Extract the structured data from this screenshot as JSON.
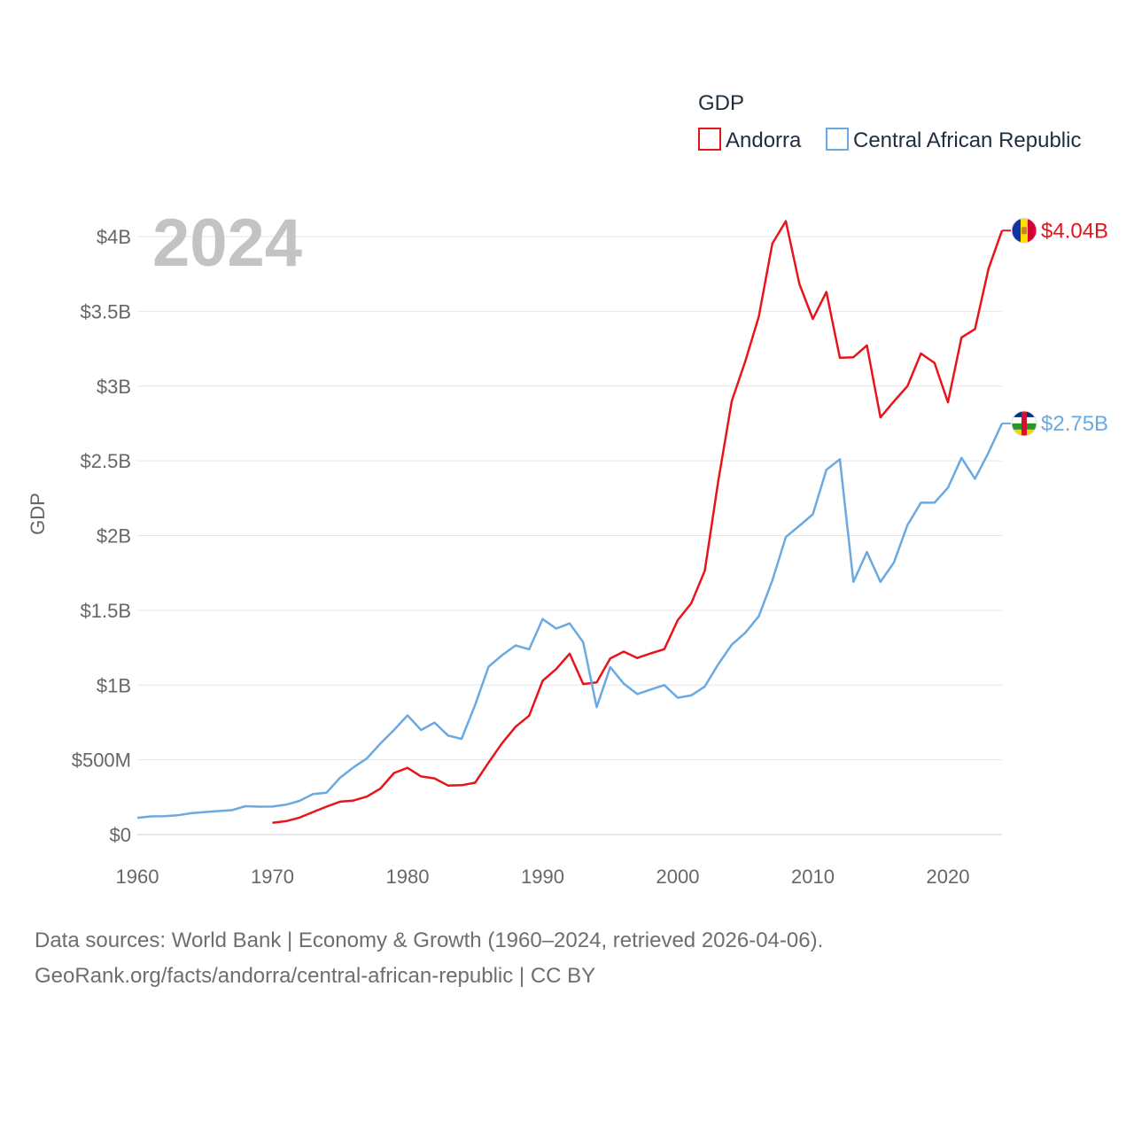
{
  "chart_data": {
    "type": "line",
    "legend_title": "GDP",
    "ylabel": "GDP",
    "xlabel": "",
    "year_label": "2024",
    "xlim": [
      1960,
      2024
    ],
    "ylim": [
      0,
      4000000000
    ],
    "y_ticks": [
      {
        "value": 0,
        "label": "$0"
      },
      {
        "value": 500000000,
        "label": "$500M"
      },
      {
        "value": 1000000000,
        "label": "$1B"
      },
      {
        "value": 1500000000,
        "label": "$1.5B"
      },
      {
        "value": 2000000000,
        "label": "$2B"
      },
      {
        "value": 2500000000,
        "label": "$2.5B"
      },
      {
        "value": 3000000000,
        "label": "$3B"
      },
      {
        "value": 3500000000,
        "label": "$3.5B"
      },
      {
        "value": 4000000000,
        "label": "$4B"
      }
    ],
    "x_ticks": [
      {
        "value": 1960,
        "label": "1960"
      },
      {
        "value": 1970,
        "label": "1970"
      },
      {
        "value": 1980,
        "label": "1980"
      },
      {
        "value": 1990,
        "label": "1990"
      },
      {
        "value": 2000,
        "label": "2000"
      },
      {
        "value": 2010,
        "label": "2010"
      },
      {
        "value": 2020,
        "label": "2020"
      }
    ],
    "series": [
      {
        "name": "Andorra",
        "color": "#e8141b",
        "end_label": "$4.04B",
        "flag": "andorra-flag-icon",
        "x": [
          1970,
          1971,
          1972,
          1973,
          1974,
          1975,
          1976,
          1977,
          1978,
          1979,
          1980,
          1981,
          1982,
          1983,
          1984,
          1985,
          1986,
          1987,
          1988,
          1989,
          1990,
          1991,
          1992,
          1993,
          1994,
          1995,
          1996,
          1997,
          1998,
          1999,
          2000,
          2001,
          2002,
          2003,
          2004,
          2005,
          2006,
          2007,
          2008,
          2009,
          2010,
          2011,
          2012,
          2013,
          2014,
          2015,
          2016,
          2017,
          2018,
          2019,
          2020,
          2021,
          2022,
          2023,
          2024
        ],
        "values": [
          78600000,
          89400000,
          113400000,
          150800000,
          186600000,
          220100000,
          227300000,
          254000000,
          308000000,
          411600000,
          446400000,
          388800000,
          375900000,
          327900000,
          330100000,
          346700000,
          482000000,
          611300000,
          721400000,
          795400000,
          1029000000,
          1107000000,
          1210000000,
          1007000000,
          1018000000,
          1178000000,
          1224000000,
          1181000000,
          1212000000,
          1240000000,
          1434000000,
          1547000000,
          1764000000,
          2367000000,
          2900000000,
          3167000000,
          3465000000,
          3953000000,
          4103000000,
          3683000000,
          3449000000,
          3629000000,
          3189000000,
          3193000000,
          3272000000,
          2790000000,
          2897000000,
          3000000000,
          3218000000,
          3155000000,
          2891000000,
          3325000000,
          3381000000,
          3785000000,
          4040000000
        ]
      },
      {
        "name": "Central African Republic",
        "color": "#6ba9e2",
        "end_label": "$2.75B",
        "flag": "central-african-republic-flag-icon",
        "x": [
          1960,
          1961,
          1962,
          1963,
          1964,
          1965,
          1966,
          1967,
          1968,
          1969,
          1970,
          1971,
          1972,
          1973,
          1974,
          1975,
          1976,
          1977,
          1978,
          1979,
          1980,
          1981,
          1982,
          1983,
          1984,
          1985,
          1986,
          1987,
          1988,
          1989,
          1990,
          1991,
          1992,
          1993,
          1994,
          1995,
          1996,
          1997,
          1998,
          1999,
          2000,
          2001,
          2002,
          2003,
          2004,
          2005,
          2006,
          2007,
          2008,
          2009,
          2010,
          2011,
          2012,
          2013,
          2014,
          2015,
          2016,
          2017,
          2018,
          2019,
          2020,
          2021,
          2022,
          2023,
          2024
        ],
        "values": [
          112200000,
          121700000,
          122900000,
          129300000,
          142600000,
          150600000,
          157300000,
          163300000,
          189500000,
          186400000,
          187000000,
          200000000,
          225000000,
          271000000,
          280000000,
          380000000,
          450000000,
          510000000,
          610000000,
          700000000,
          797000000,
          699000000,
          749000000,
          662000000,
          640000000,
          867000000,
          1123000000,
          1200000000,
          1265000000,
          1239000000,
          1441000000,
          1378000000,
          1412000000,
          1286000000,
          852000000,
          1120000000,
          1010000000,
          940000000,
          970000000,
          1000000000,
          915000000,
          931000000,
          990000000,
          1140000000,
          1270000000,
          1350000000,
          1460000000,
          1700000000,
          1990000000,
          2065000000,
          2142000000,
          2440000000,
          2510000000,
          1690000000,
          1890000000,
          1690000000,
          1820000000,
          2070000000,
          2220000000,
          2220000000,
          2320000000,
          2520000000,
          2380000000,
          2555000000,
          2750000000
        ]
      }
    ]
  },
  "footer": {
    "line1": "Data sources: World Bank | Economy & Growth (1960–2024, retrieved 2026-04-06).",
    "line2": "GeoRank.org/facts/andorra/central-african-republic | CC BY"
  }
}
